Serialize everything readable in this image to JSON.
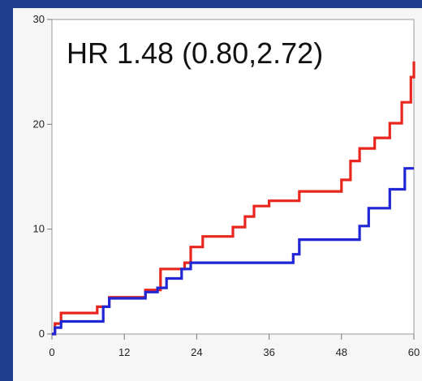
{
  "chart_data": {
    "type": "line",
    "annotation": "HR 1.48 (0.80,2.72)",
    "xlabel": "",
    "ylabel": "",
    "xlim": [
      0,
      60
    ],
    "ylim": [
      0,
      30
    ],
    "xticks": [
      0,
      12,
      24,
      36,
      48,
      60
    ],
    "yticks": [
      0,
      10,
      20,
      30
    ],
    "grid": false,
    "series": [
      {
        "color": "#e8261e",
        "step": true,
        "x": [
          0,
          0.5,
          1.5,
          7.5,
          9.5,
          15.5,
          18,
          22,
          23,
          25,
          30,
          32,
          33.5,
          36,
          41,
          48,
          49.5,
          51,
          53.5,
          56,
          58,
          59.5,
          60
        ],
        "y": [
          0,
          1.0,
          2.0,
          2.6,
          3.5,
          4.2,
          6.2,
          6.8,
          8.3,
          9.3,
          10.2,
          11.2,
          12.2,
          12.7,
          13.6,
          14.7,
          16.5,
          17.7,
          18.7,
          20.1,
          22.1,
          24.5,
          26.0
        ]
      },
      {
        "color": "#2026d4",
        "step": true,
        "x": [
          0,
          0.5,
          1.5,
          8.5,
          9.5,
          15.5,
          17.5,
          19,
          21.5,
          23,
          40,
          41,
          51,
          52.5,
          56,
          58.5,
          60
        ],
        "y": [
          0,
          0.6,
          1.2,
          2.6,
          3.4,
          4.0,
          4.4,
          5.3,
          6.2,
          6.8,
          7.6,
          9.0,
          10.3,
          12.0,
          13.8,
          15.8,
          15.8
        ]
      }
    ]
  }
}
